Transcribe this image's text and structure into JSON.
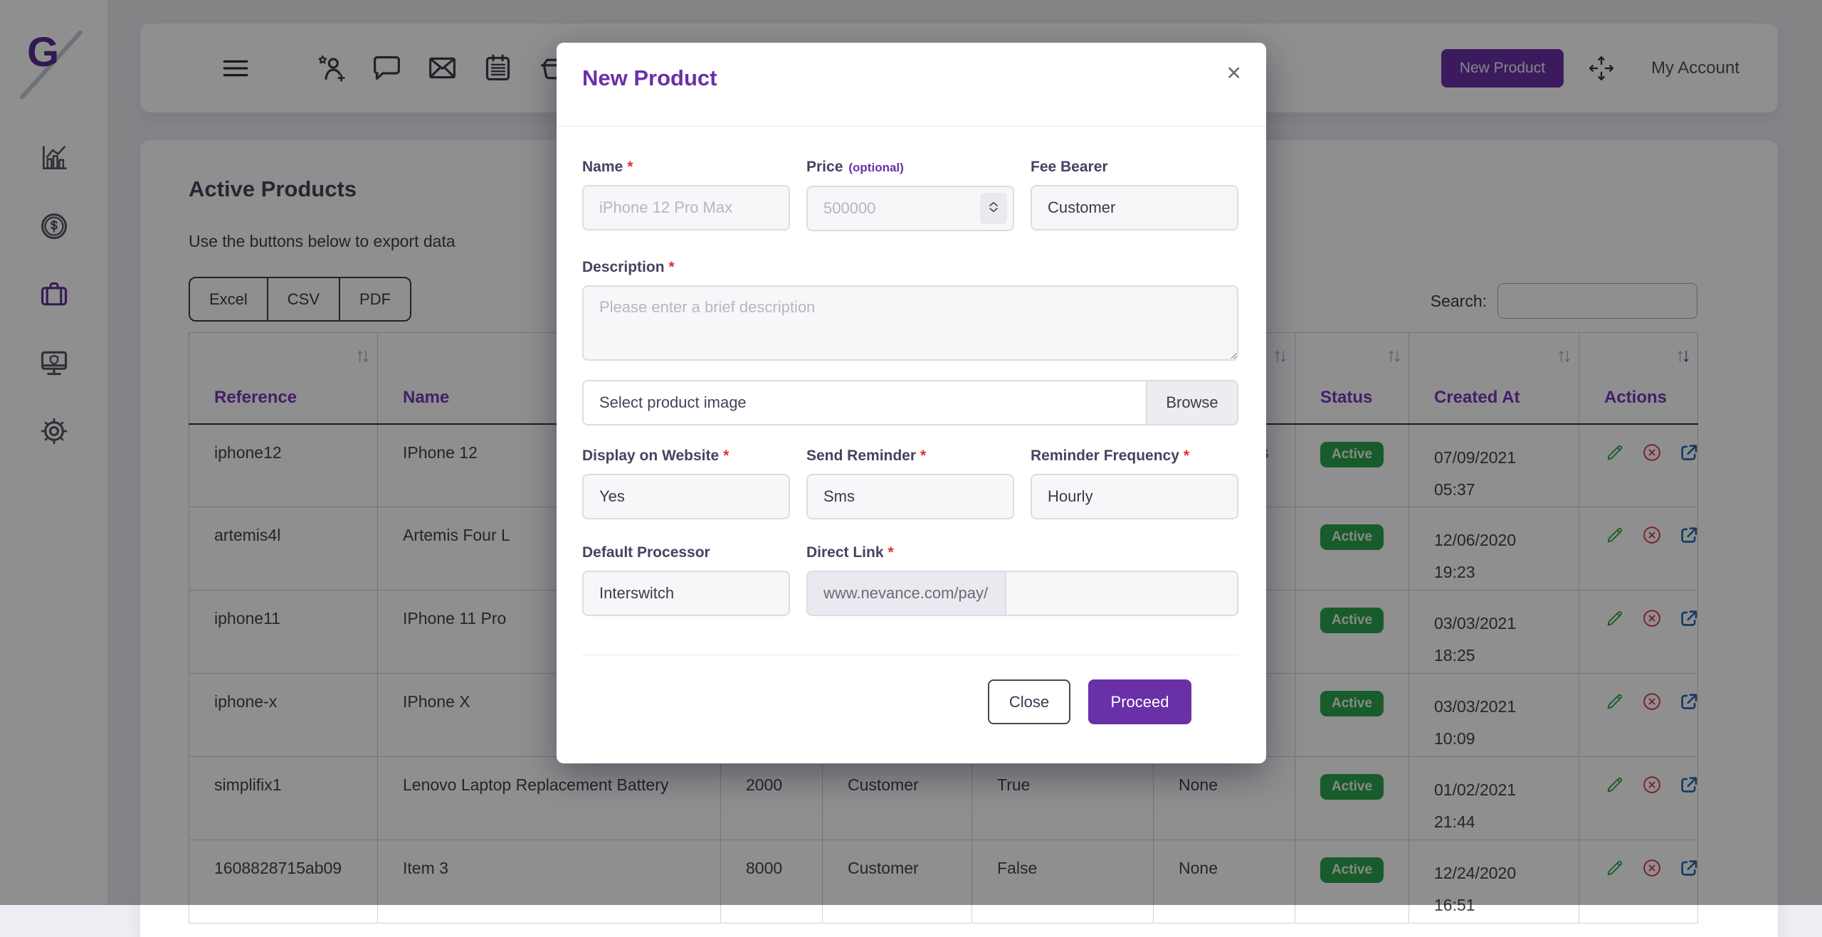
{
  "colors": {
    "purple": "#6a30a8",
    "table_header_purple": "#7a36bd",
    "badge_green": "#2ba44e",
    "edit_green": "#28a745",
    "delete_red": "#dc3545",
    "link_blue": "#2264b0"
  },
  "sidebar": {
    "logo": "G",
    "items": [
      {
        "icon": "bar-chart-icon",
        "active": false
      },
      {
        "icon": "dollar-coin-icon",
        "active": false
      },
      {
        "icon": "briefcase-icon",
        "active": true
      },
      {
        "icon": "monitor-shield-icon",
        "active": false
      },
      {
        "icon": "gear-icon",
        "active": false
      }
    ]
  },
  "topbar": {
    "icons": [
      "add-user-icon",
      "chat-icon",
      "mail-icon",
      "calendar-list-icon",
      "basket-check-icon"
    ],
    "new_product_label": "New Product",
    "my_account_label": "My Account"
  },
  "main": {
    "title": "Active Products",
    "subtitle": "Use the buttons below to export data",
    "export_buttons": [
      "Excel",
      "CSV",
      "PDF"
    ],
    "search_label": "Search:",
    "search_value": ""
  },
  "table": {
    "sort_glyph_up": "↑",
    "sort_glyph_down": "↓",
    "columns": [
      {
        "label": "Reference",
        "sort_active": false
      },
      {
        "label": "Name",
        "sort_active": false
      },
      {
        "label": "",
        "sort_active": false
      },
      {
        "label": "",
        "sort_active": false
      },
      {
        "label": "",
        "sort_active": false
      },
      {
        "label": "",
        "sort_active": false
      },
      {
        "label": "Status",
        "sort_active": false
      },
      {
        "label": "Created At",
        "sort_active": false
      },
      {
        "label": "Actions",
        "sort_active": true
      }
    ],
    "rows": [
      {
        "reference": "iphone12",
        "name": "IPhone 12",
        "price": "",
        "fee_bearer": "",
        "display_on_website": "",
        "reminder": "s",
        "status": "Active",
        "created_date": "07/09/2021",
        "created_time": "05:37"
      },
      {
        "reference": "artemis4l",
        "name": "Artemis Four L",
        "price": "",
        "fee_bearer": "",
        "display_on_website": "",
        "reminder": "",
        "status": "Active",
        "created_date": "12/06/2020",
        "created_time": "19:23"
      },
      {
        "reference": "iphone11",
        "name": "IPhone 11 Pro",
        "price": "",
        "fee_bearer": "",
        "display_on_website": "",
        "reminder": "",
        "status": "Active",
        "created_date": "03/03/2021",
        "created_time": "18:25"
      },
      {
        "reference": "iphone-x",
        "name": "IPhone X",
        "price": "",
        "fee_bearer": "",
        "display_on_website": "",
        "reminder": "",
        "status": "Active",
        "created_date": "03/03/2021",
        "created_time": "10:09"
      },
      {
        "reference": "simplifix1",
        "name": "Lenovo Laptop Replacement Battery",
        "price": "2000",
        "fee_bearer": "Customer",
        "display_on_website": "True",
        "reminder": "None",
        "status": "Active",
        "created_date": "01/02/2021",
        "created_time": "21:44"
      },
      {
        "reference": "1608828715ab09",
        "name": "Item 3",
        "price": "8000",
        "fee_bearer": "Customer",
        "display_on_website": "False",
        "reminder": "None",
        "status": "Active",
        "created_date": "12/24/2020",
        "created_time": "16:51"
      }
    ]
  },
  "modal": {
    "title": "New Product",
    "close_glyph": "✕",
    "required_marker": "*",
    "fields": {
      "name": {
        "label": "Name",
        "placeholder": "iPhone 12 Pro Max"
      },
      "price": {
        "label": "Price",
        "optional_label": "(optional)",
        "placeholder": "500000"
      },
      "fee_bearer": {
        "label": "Fee Bearer",
        "value": "Customer"
      },
      "description": {
        "label": "Description",
        "placeholder": "Please enter a brief description"
      },
      "image": {
        "placeholder_text": "Select product image",
        "browse_label": "Browse"
      },
      "display_on_website": {
        "label": "Display on Website",
        "value": "Yes"
      },
      "send_reminder": {
        "label": "Send Reminder",
        "value": "Sms"
      },
      "reminder_frequency": {
        "label": "Reminder Frequency",
        "value": "Hourly"
      },
      "default_processor": {
        "label": "Default Processor",
        "value": "Interswitch"
      },
      "direct_link": {
        "label": "Direct Link",
        "prefix": "www.nevance.com/pay/",
        "value": ""
      }
    },
    "close_button": "Close",
    "proceed_button": "Proceed"
  }
}
